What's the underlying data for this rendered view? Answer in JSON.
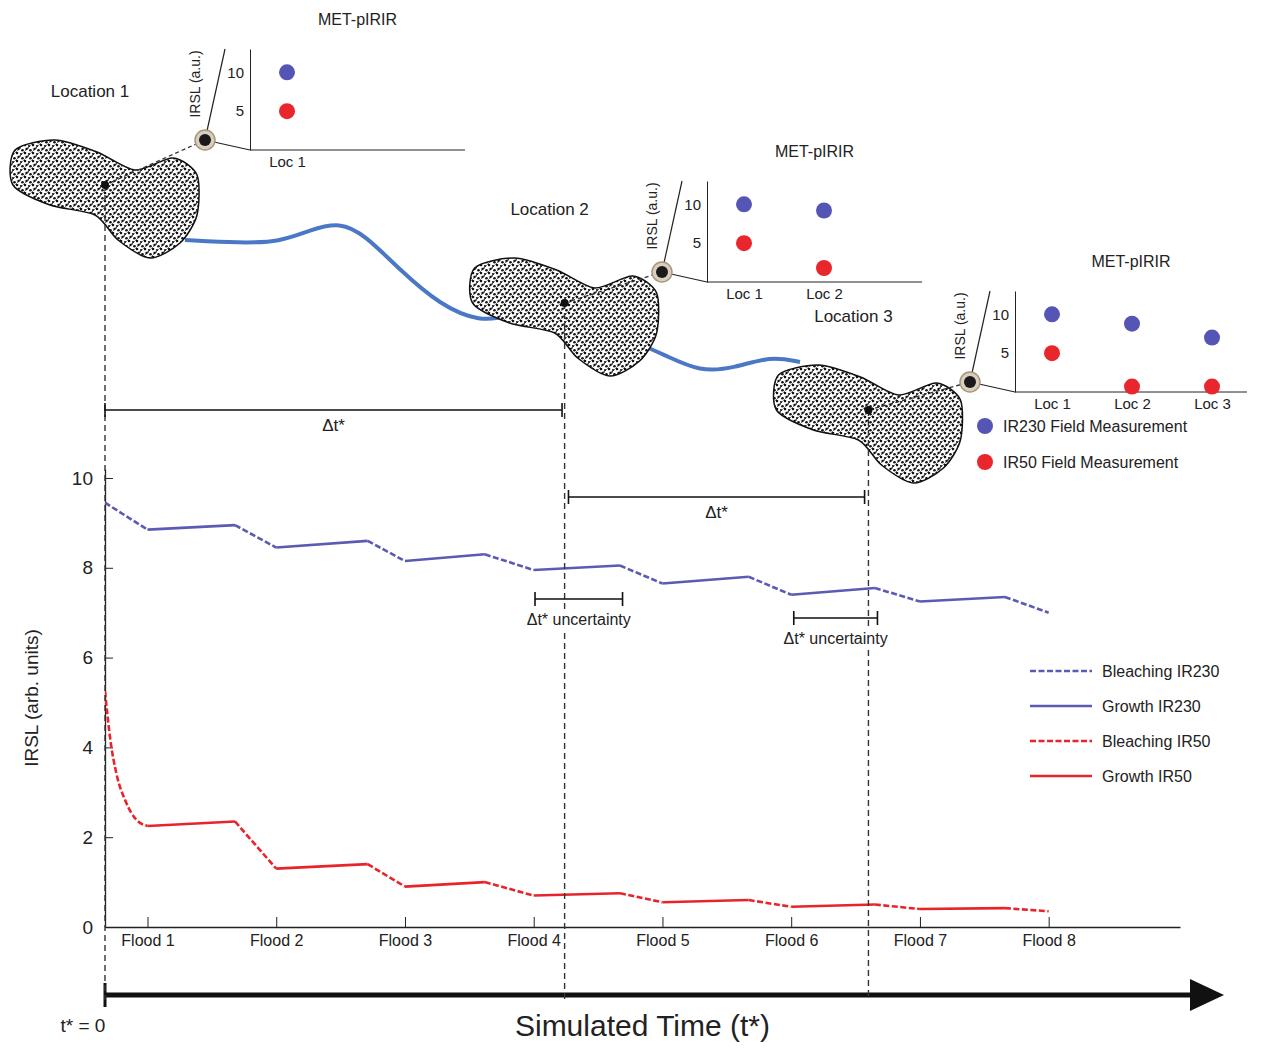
{
  "chart_data": [
    {
      "type": "line",
      "xlabel": "Simulated Time (t*)",
      "ylabel": "IRSL (arb. units)",
      "xlim": [
        0,
        8.35
      ],
      "xticks": [
        {
          "value": 0.33,
          "label": "Flood 1"
        },
        {
          "value": 1.33,
          "label": "Flood 2"
        },
        {
          "value": 2.33,
          "label": "Flood 3"
        },
        {
          "value": 3.33,
          "label": "Flood 4"
        },
        {
          "value": 4.33,
          "label": "Flood 5"
        },
        {
          "value": 5.33,
          "label": "Flood 6"
        },
        {
          "value": 6.33,
          "label": "Flood 7"
        },
        {
          "value": 7.33,
          "label": "Flood 8"
        }
      ],
      "ylim": [
        0,
        10.2
      ],
      "yticks": [
        0,
        2,
        4,
        6,
        8,
        10
      ],
      "grid": false,
      "legend": "lower right",
      "series": [
        {
          "name": "Bleaching IR230",
          "color": "#5b5bb4",
          "line_style": "dashed",
          "x": [
            0,
            0.33,
            null,
            1.01,
            1.33,
            null,
            2.04,
            2.33,
            null,
            2.95,
            3.33,
            null,
            4.0,
            4.33,
            null,
            5.0,
            5.33,
            null,
            5.98,
            6.33,
            null,
            6.99,
            7.33
          ],
          "values": [
            9.45,
            8.85,
            null,
            8.95,
            8.45,
            null,
            8.6,
            8.15,
            null,
            8.3,
            7.95,
            null,
            8.05,
            7.65,
            null,
            7.8,
            7.4,
            null,
            7.55,
            7.25,
            null,
            7.35,
            7.0
          ]
        },
        {
          "name": "Growth IR230",
          "color": "#5b5bb4",
          "line_style": "solid",
          "x": [
            0.33,
            1.01,
            null,
            1.33,
            2.04,
            null,
            2.33,
            2.95,
            null,
            3.33,
            4.0,
            null,
            4.33,
            5.0,
            null,
            5.33,
            5.98,
            null,
            6.33,
            6.99
          ],
          "values": [
            8.85,
            8.95,
            null,
            8.45,
            8.6,
            null,
            8.15,
            8.3,
            null,
            7.95,
            8.05,
            null,
            7.65,
            7.8,
            null,
            7.4,
            7.55,
            null,
            7.25,
            7.35
          ]
        },
        {
          "name": "Bleaching IR50",
          "color": "#e8242b",
          "line_style": "dashed",
          "x": [
            0,
            0.04,
            0.09,
            0.16,
            0.24,
            0.33,
            null,
            1.01,
            1.33,
            null,
            2.04,
            2.33,
            null,
            2.95,
            3.33,
            null,
            4.0,
            4.33,
            null,
            5.0,
            5.33,
            null,
            5.98,
            6.33,
            null,
            6.99,
            7.33
          ],
          "values": [
            5.25,
            4.2,
            3.4,
            2.8,
            2.4,
            2.25,
            null,
            2.35,
            1.3,
            null,
            1.4,
            0.9,
            null,
            1.0,
            0.7,
            null,
            0.75,
            0.55,
            null,
            0.6,
            0.45,
            null,
            0.5,
            0.4,
            null,
            0.42,
            0.35
          ]
        },
        {
          "name": "Growth IR50",
          "color": "#e8242b",
          "line_style": "solid",
          "x": [
            0.33,
            1.01,
            null,
            1.33,
            2.04,
            null,
            2.33,
            2.95,
            null,
            3.33,
            4.0,
            null,
            4.33,
            5.0,
            null,
            5.33,
            5.98,
            null,
            6.33,
            6.99
          ],
          "values": [
            2.25,
            2.35,
            null,
            1.3,
            1.4,
            null,
            0.9,
            1.0,
            null,
            0.7,
            0.75,
            null,
            0.55,
            0.6,
            null,
            0.45,
            0.5,
            null,
            0.4,
            0.42
          ]
        }
      ],
      "locations": [
        {
          "label": "Location 1",
          "x": 0
        },
        {
          "label": "Location 2",
          "x": 3.57
        },
        {
          "label": "Location 3",
          "x": 5.93
        }
      ],
      "intervals": [
        {
          "label": "Δt*",
          "x": [
            0,
            3.55
          ]
        },
        {
          "label": "Δt*",
          "x": [
            3.6,
            5.9
          ]
        }
      ],
      "uncertainties": [
        {
          "label": "Δt* uncertainty",
          "x": [
            3.34,
            4.02
          ]
        },
        {
          "label": "Δt* uncertainty",
          "x": [
            5.35,
            6.0
          ]
        }
      ],
      "origin_label": "t* = 0"
    },
    {
      "type": "scatter",
      "title": "MET-pIRIR",
      "ylabel": "IRSL (a.u.)",
      "categories": [
        "Loc 1"
      ],
      "ylim": [
        0,
        13
      ],
      "yticks": [
        5,
        10
      ],
      "series": [
        {
          "color": "#5555b5",
          "marker": "circle",
          "values": [
            10
          ]
        },
        {
          "color": "#e8262c",
          "marker": "circle",
          "values": [
            5
          ]
        }
      ]
    },
    {
      "type": "scatter",
      "title": "MET-pIRIR",
      "ylabel": "IRSL (a.u.)",
      "categories": [
        "Loc 1",
        "Loc 2"
      ],
      "ylim": [
        0,
        13
      ],
      "yticks": [
        5,
        10
      ],
      "series": [
        {
          "color": "#5555b5",
          "marker": "circle",
          "values": [
            10,
            9.2
          ]
        },
        {
          "color": "#e8262c",
          "marker": "circle",
          "values": [
            5,
            1.8
          ]
        }
      ]
    },
    {
      "type": "scatter",
      "title": "MET-pIRIR",
      "ylabel": "IRSL (a.u.)",
      "categories": [
        "Loc 1",
        "Loc 2",
        "Loc 3"
      ],
      "ylim": [
        0,
        13
      ],
      "yticks": [
        5,
        10
      ],
      "legend": "bottom",
      "series": [
        {
          "name": "IR230 Field Measurement",
          "color": "#5555b5",
          "marker": "circle",
          "values": [
            10,
            8.8,
            7.0
          ]
        },
        {
          "name": "IR50 Field Measurement",
          "color": "#e8262c",
          "marker": "circle",
          "values": [
            5,
            0.7,
            0.7
          ]
        }
      ]
    }
  ]
}
